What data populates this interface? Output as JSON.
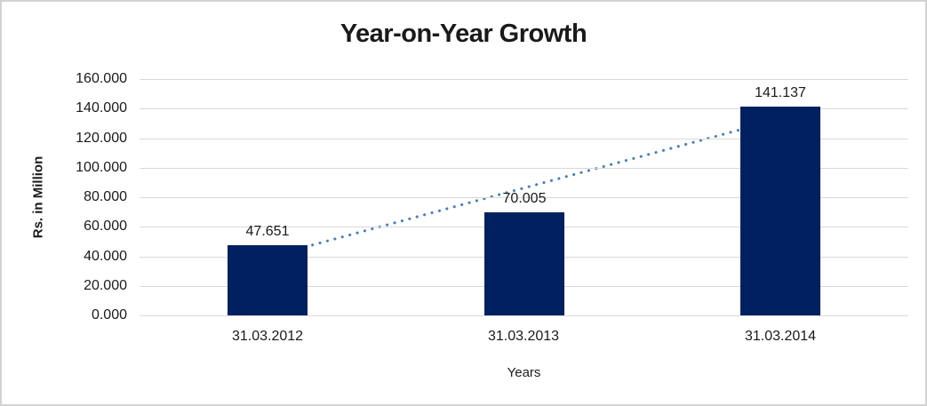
{
  "chart_data": {
    "type": "bar",
    "title": "Year-on-Year Growth",
    "xlabel": "Years",
    "ylabel": "Rs. in Million",
    "categories": [
      "31.03.2012",
      "31.03.2013",
      "31.03.2014"
    ],
    "values": [
      47.651,
      70.005,
      141.137
    ],
    "data_labels": [
      "47.651",
      "70.005",
      "141.137"
    ],
    "ylim": [
      0,
      160
    ],
    "ytick_step": 20,
    "yticks": [
      {
        "value": 0,
        "label": "0.000"
      },
      {
        "value": 20,
        "label": "20.000"
      },
      {
        "value": 40,
        "label": "40.000"
      },
      {
        "value": 60,
        "label": "60.000"
      },
      {
        "value": 80,
        "label": "80.000"
      },
      {
        "value": 100,
        "label": "100.000"
      },
      {
        "value": 120,
        "label": "120.000"
      },
      {
        "value": 140,
        "label": "140.000"
      },
      {
        "value": 160,
        "label": "160.000"
      }
    ],
    "grid": true,
    "legend": "none",
    "trendline": {
      "style": "dotted",
      "start_value": 39.5,
      "end_value": 133.0
    },
    "colors": {
      "bar": "#002060",
      "trendline": "#4A7EBB",
      "gridline": "#d9d9d9",
      "text": "#1a1a1a",
      "background": "#ffffff",
      "frame_border": "#d2d2d2"
    }
  }
}
